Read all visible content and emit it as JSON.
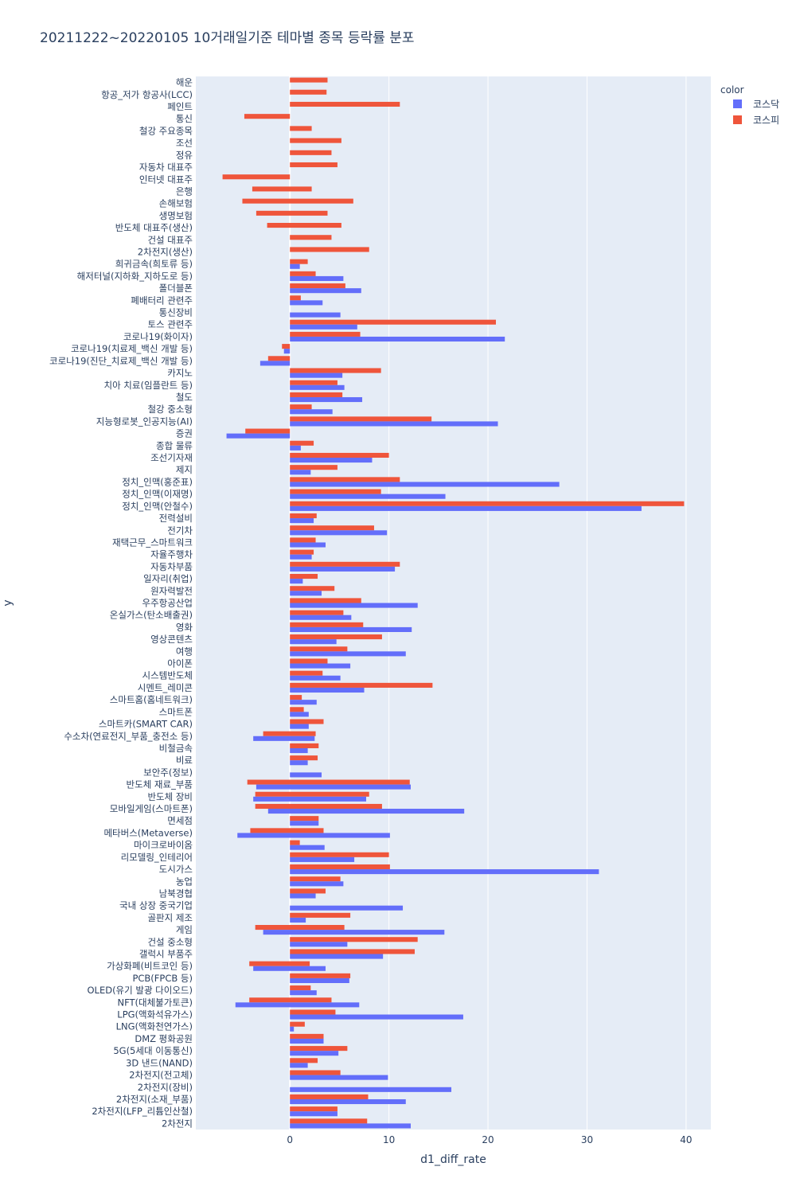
{
  "chart_data": {
    "type": "bar",
    "orientation": "horizontal",
    "barmode": "group",
    "title": "20211222~20220105 10거래일기준 테마별 종목 등락률 분포",
    "xlabel": "d1_diff_rate",
    "ylabel": "y",
    "xlim": [
      -9.5,
      42.5
    ],
    "xticks": [
      0,
      10,
      20,
      30,
      40
    ],
    "grid": true,
    "legend": {
      "title": "color",
      "position": "top-right"
    },
    "series": [
      {
        "name": "코스닥",
        "color": "#636efa"
      },
      {
        "name": "코스피",
        "color": "#ef553b"
      }
    ],
    "categories": [
      "해운",
      "항공_저가 항공사(LCC)",
      "페인트",
      "통신",
      "철강 주요종목",
      "조선",
      "정유",
      "자동차 대표주",
      "인터넷 대표주",
      "은행",
      "손해보험",
      "생명보험",
      "반도체 대표주(생산)",
      "건설 대표주",
      "2차전지(생산)",
      "희귀금속(희토류 등)",
      "해저터널(지하화_지하도로 등)",
      "폴더블폰",
      "폐배터리 관련주",
      "통신장비",
      "토스 관련주",
      "코로나19(화이자)",
      "코로나19(치료제_백신 개발 등)",
      "코로나19(진단_치료제_백신 개발 등)",
      "카지노",
      "치아 치료(임플란트 등)",
      "철도",
      "철강 중소형",
      "지능형로봇_인공지능(AI)",
      "증권",
      "종합 물류",
      "조선기자재",
      "제지",
      "정치_인맥(홍준표)",
      "정치_인맥(이재명)",
      "정치_인맥(안철수)",
      "전력설비",
      "전기차",
      "재택근무_스마트워크",
      "자율주행차",
      "자동차부품",
      "일자리(취업)",
      "원자력발전",
      "우주항공산업",
      "온실가스(탄소배출권)",
      "영화",
      "영상콘텐츠",
      "여행",
      "아이폰",
      "시스템반도체",
      "시멘트_레미콘",
      "스마트홈(홈네트워크)",
      "스마트폰",
      "스마트카(SMART CAR)",
      "수소차(연료전지_부품_충전소 등)",
      "비철금속",
      "비료",
      "보안주(정보)",
      "반도체 재료_부품",
      "반도체 장비",
      "모바일게임(스마트폰)",
      "면세점",
      "메타버스(Metaverse)",
      "마이크로바이옴",
      "리모델링_인테리어",
      "도시가스",
      "농업",
      "남북경협",
      "국내 상장 중국기업",
      "골판지 제조",
      "게임",
      "건설 중소형",
      "갤럭시 부품주",
      "가상화폐(비트코인 등)",
      "PCB(FPCB 등)",
      "OLED(유기 발광 다이오드)",
      "NFT(대체불가토큰)",
      "LPG(액화석유가스)",
      "LNG(액화천연가스)",
      "DMZ 평화공원",
      "5G(5세대 이동통신)",
      "3D 낸드(NAND)",
      "2차전지(전고체)",
      "2차전지(장비)",
      "2차전지(소재_부품)",
      "2차전지(LFP_리튬인산철)",
      "2차전지"
    ],
    "kospi": [
      [
        [
          0,
          3.8
        ]
      ],
      [
        [
          0,
          3.7
        ]
      ],
      [
        [
          0,
          11.1
        ]
      ],
      [
        [
          -4.6,
          0
        ]
      ],
      [
        [
          0,
          2.2
        ]
      ],
      [
        [
          0,
          5.2
        ]
      ],
      [
        [
          0,
          4.2
        ]
      ],
      [
        [
          0,
          4.8
        ]
      ],
      [
        [
          -6.8,
          0
        ]
      ],
      [
        [
          -3.8,
          2.2
        ]
      ],
      [
        [
          -4.8,
          6.4
        ]
      ],
      [
        [
          -3.4,
          3.8
        ]
      ],
      [
        [
          -2.3,
          5.2
        ]
      ],
      [
        [
          0,
          4.2
        ]
      ],
      [
        [
          0,
          8.0
        ]
      ],
      [
        [
          0,
          1.8
        ]
      ],
      [
        [
          0,
          2.6
        ]
      ],
      [
        [
          0,
          5.6
        ]
      ],
      [
        [
          0,
          1.1
        ]
      ],
      null,
      [
        [
          0,
          20.8
        ]
      ],
      [
        [
          0,
          7.1
        ]
      ],
      [
        [
          -0.8,
          0
        ]
      ],
      [
        [
          -2.2,
          0
        ]
      ],
      [
        [
          0,
          9.2
        ]
      ],
      [
        [
          0,
          4.8
        ]
      ],
      [
        [
          0,
          5.3
        ]
      ],
      [
        [
          0,
          2.2
        ]
      ],
      [
        [
          0,
          14.3
        ]
      ],
      [
        [
          -4.5,
          0
        ]
      ],
      [
        [
          0,
          2.4
        ]
      ],
      [
        [
          0,
          10.0
        ]
      ],
      [
        [
          0,
          4.8
        ]
      ],
      [
        [
          0,
          11.1
        ]
      ],
      [
        [
          0,
          9.2
        ]
      ],
      [
        [
          0,
          39.8
        ]
      ],
      [
        [
          0,
          2.7
        ]
      ],
      [
        [
          0,
          8.5
        ]
      ],
      [
        [
          0,
          2.6
        ]
      ],
      [
        [
          0,
          2.4
        ]
      ],
      [
        [
          0,
          11.1
        ]
      ],
      [
        [
          0,
          2.8
        ]
      ],
      [
        [
          0,
          4.5
        ]
      ],
      [
        [
          0,
          7.2
        ]
      ],
      [
        [
          0,
          5.4
        ]
      ],
      [
        [
          0,
          7.4
        ]
      ],
      [
        [
          0,
          9.3
        ]
      ],
      [
        [
          0,
          5.8
        ]
      ],
      [
        [
          0,
          3.8
        ]
      ],
      [
        [
          0,
          3.3
        ]
      ],
      [
        [
          0,
          14.4
        ]
      ],
      [
        [
          0,
          1.2
        ]
      ],
      [
        [
          0,
          1.4
        ]
      ],
      [
        [
          0,
          3.4
        ]
      ],
      [
        [
          -2.7,
          2.6
        ]
      ],
      [
        [
          0,
          2.9
        ]
      ],
      [
        [
          0,
          2.8
        ]
      ],
      null,
      [
        [
          -4.3,
          12.1
        ]
      ],
      [
        [
          -3.5,
          8.0
        ]
      ],
      [
        [
          -3.5,
          9.3
        ]
      ],
      [
        [
          0,
          2.9
        ]
      ],
      [
        [
          -4.0,
          3.4
        ]
      ],
      [
        [
          0,
          1.0
        ]
      ],
      [
        [
          0,
          10.0
        ]
      ],
      [
        [
          0,
          10.1
        ]
      ],
      [
        [
          0,
          5.1
        ]
      ],
      [
        [
          0,
          3.6
        ]
      ],
      null,
      [
        [
          0,
          6.1
        ]
      ],
      [
        [
          -3.5,
          5.5
        ]
      ],
      [
        [
          0,
          12.9
        ]
      ],
      [
        [
          0,
          12.6
        ]
      ],
      [
        [
          -4.1,
          2.0
        ]
      ],
      [
        [
          0,
          6.1
        ]
      ],
      [
        [
          0,
          2.1
        ]
      ],
      [
        [
          -4.1,
          4.2
        ]
      ],
      [
        [
          0,
          4.6
        ]
      ],
      [
        [
          0,
          1.5
        ]
      ],
      [
        [
          0,
          3.4
        ]
      ],
      [
        [
          0,
          5.8
        ]
      ],
      [
        [
          0,
          2.8
        ]
      ],
      [
        [
          0,
          5.1
        ]
      ],
      null,
      [
        [
          0,
          7.9
        ]
      ],
      [
        [
          0,
          4.8
        ]
      ],
      [
        [
          0,
          7.8
        ]
      ]
    ],
    "kosdaq": [
      null,
      null,
      null,
      null,
      null,
      null,
      null,
      null,
      null,
      null,
      null,
      null,
      null,
      null,
      null,
      [
        [
          0,
          1.0
        ]
      ],
      [
        [
          0,
          5.4
        ]
      ],
      [
        [
          0,
          7.2
        ]
      ],
      [
        [
          0,
          3.3
        ]
      ],
      [
        [
          0,
          5.1
        ]
      ],
      [
        [
          0,
          6.8
        ]
      ],
      [
        [
          0,
          21.7
        ]
      ],
      [
        [
          -0.6,
          0
        ]
      ],
      [
        [
          -3.0,
          0
        ]
      ],
      [
        [
          0,
          5.3
        ]
      ],
      [
        [
          0,
          5.5
        ]
      ],
      [
        [
          0,
          7.3
        ]
      ],
      [
        [
          0,
          4.3
        ]
      ],
      [
        [
          0,
          21.0
        ]
      ],
      [
        [
          -6.4,
          0
        ]
      ],
      [
        [
          0,
          1.1
        ]
      ],
      [
        [
          0,
          8.3
        ]
      ],
      [
        [
          0,
          2.1
        ]
      ],
      [
        [
          0,
          27.2
        ]
      ],
      [
        [
          0,
          15.7
        ]
      ],
      [
        [
          0,
          35.5
        ]
      ],
      [
        [
          0,
          2.4
        ]
      ],
      [
        [
          0,
          9.8
        ]
      ],
      [
        [
          0,
          3.6
        ]
      ],
      [
        [
          0,
          2.2
        ]
      ],
      [
        [
          0,
          10.6
        ]
      ],
      [
        [
          0,
          1.3
        ]
      ],
      [
        [
          0,
          3.2
        ]
      ],
      [
        [
          0,
          12.9
        ]
      ],
      [
        [
          0,
          6.2
        ]
      ],
      [
        [
          0,
          12.3
        ]
      ],
      [
        [
          0,
          4.7
        ]
      ],
      [
        [
          0,
          11.7
        ]
      ],
      [
        [
          0,
          6.1
        ]
      ],
      [
        [
          0,
          5.1
        ]
      ],
      [
        [
          0,
          7.5
        ]
      ],
      [
        [
          0,
          2.7
        ]
      ],
      [
        [
          0,
          1.9
        ]
      ],
      [
        [
          0,
          1.9
        ]
      ],
      [
        [
          -3.7,
          2.5
        ]
      ],
      [
        [
          0,
          1.8
        ]
      ],
      [
        [
          0,
          1.8
        ]
      ],
      [
        [
          0,
          3.2
        ]
      ],
      [
        [
          -3.4,
          12.2
        ]
      ],
      [
        [
          -3.7,
          7.7
        ]
      ],
      [
        [
          -2.2,
          17.6
        ]
      ],
      [
        [
          0,
          2.9
        ]
      ],
      [
        [
          -5.3,
          10.1
        ]
      ],
      [
        [
          0,
          3.5
        ]
      ],
      [
        [
          0,
          6.5
        ]
      ],
      [
        [
          0,
          31.2
        ]
      ],
      [
        [
          0,
          5.4
        ]
      ],
      [
        [
          0,
          2.6
        ]
      ],
      [
        [
          0,
          11.4
        ]
      ],
      [
        [
          0,
          1.6
        ]
      ],
      [
        [
          -2.7,
          15.6
        ]
      ],
      [
        [
          0,
          5.8
        ]
      ],
      [
        [
          0,
          9.4
        ]
      ],
      [
        [
          -3.7,
          3.6
        ]
      ],
      [
        [
          0,
          6.0
        ]
      ],
      [
        [
          0,
          2.7
        ]
      ],
      [
        [
          -5.5,
          7.0
        ]
      ],
      [
        [
          0,
          17.5
        ]
      ],
      [
        [
          0,
          0.4
        ]
      ],
      [
        [
          0,
          3.4
        ]
      ],
      [
        [
          0,
          4.9
        ]
      ],
      [
        [
          0,
          1.8
        ]
      ],
      [
        [
          0,
          9.9
        ]
      ],
      [
        [
          0,
          16.3
        ]
      ],
      [
        [
          0,
          11.7
        ]
      ],
      [
        [
          0,
          4.8
        ]
      ],
      [
        [
          0,
          12.2
        ]
      ]
    ]
  }
}
